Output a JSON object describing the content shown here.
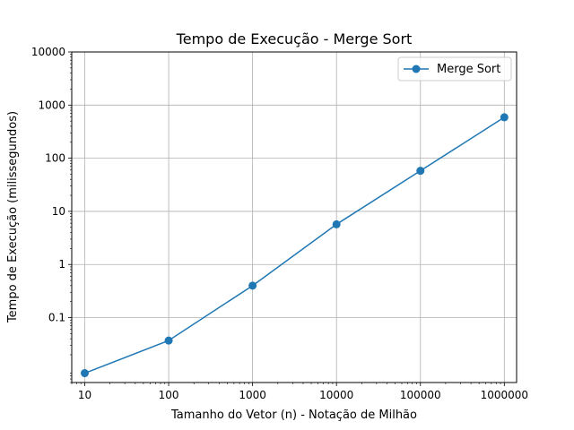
{
  "chart_data": {
    "type": "line",
    "title": "Tempo de Execução - Merge Sort",
    "xlabel": "Tamanho do Vetor (n) - Notação de Milhão",
    "ylabel": "Tempo de Execução (milissegundos)",
    "x_scale": "log",
    "y_scale": "log",
    "xlim": [
      7,
      1400000
    ],
    "ylim": [
      0.006,
      10000
    ],
    "grid": true,
    "legend_position": "top-right",
    "x_ticks": [
      {
        "value": 10,
        "label": "10"
      },
      {
        "value": 100,
        "label": "100"
      },
      {
        "value": 1000,
        "label": "1000"
      },
      {
        "value": 10000,
        "label": "10000"
      },
      {
        "value": 100000,
        "label": "100000"
      },
      {
        "value": 1000000,
        "label": "1000000"
      }
    ],
    "y_ticks": [
      {
        "value": 0.1,
        "label": "0.1"
      },
      {
        "value": 1,
        "label": "1"
      },
      {
        "value": 10,
        "label": "10"
      },
      {
        "value": 100,
        "label": "100"
      },
      {
        "value": 1000,
        "label": "1000"
      },
      {
        "value": 10000,
        "label": "10000"
      }
    ],
    "series": [
      {
        "name": "Merge Sort",
        "color": "#1f77b4",
        "marker": "circle",
        "x": [
          10,
          100,
          1000,
          10000,
          100000,
          1000000
        ],
        "y": [
          0.009,
          0.037,
          0.4,
          5.7,
          58,
          590
        ]
      }
    ]
  }
}
